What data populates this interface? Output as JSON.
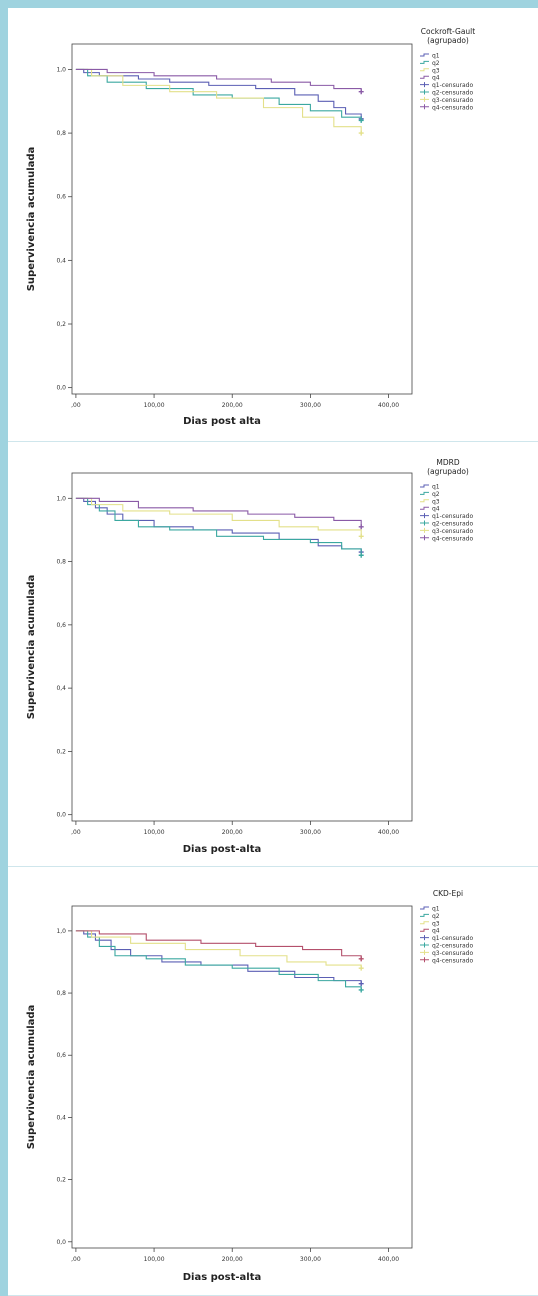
{
  "chart_data": [
    {
      "type": "line",
      "step": true,
      "xlabel": "Dias post alta",
      "ylabel": "Supervivencia acumulada",
      "xlim": [
        -5,
        430
      ],
      "ylim": [
        -0.02,
        1.08
      ],
      "xticks": [
        0,
        100,
        200,
        300,
        400
      ],
      "xtick_labels": [
        ",00",
        "100,00",
        "200,00",
        "300,00",
        "400,00"
      ],
      "yticks": [
        0.0,
        0.2,
        0.4,
        0.6,
        0.8,
        1.0
      ],
      "ytick_labels": [
        "0,0",
        "0,2",
        "0,4",
        "0,6",
        "0,8",
        "1,0"
      ],
      "grid": false,
      "legend": {
        "title": "Cockroft-Gault\n(agrupado)",
        "position": "right",
        "entries": [
          "q1",
          "q2",
          "q3",
          "q4",
          "q1-censurado",
          "q2-censurado",
          "q3-censurado",
          "q4-censurado"
        ]
      },
      "series": [
        {
          "name": "q1",
          "color": "#5b5fb4",
          "x": [
            0,
            10,
            30,
            80,
            120,
            170,
            230,
            280,
            310,
            330,
            345,
            365
          ],
          "y": [
            1.0,
            0.99,
            0.98,
            0.97,
            0.96,
            0.95,
            0.94,
            0.92,
            0.9,
            0.88,
            0.86,
            0.85
          ]
        },
        {
          "name": "q2",
          "color": "#3ba8a0",
          "x": [
            0,
            15,
            40,
            90,
            150,
            200,
            260,
            300,
            340,
            365
          ],
          "y": [
            1.0,
            0.98,
            0.96,
            0.94,
            0.92,
            0.91,
            0.89,
            0.87,
            0.85,
            0.84
          ]
        },
        {
          "name": "q3",
          "color": "#e3e08a",
          "x": [
            0,
            20,
            60,
            120,
            180,
            240,
            290,
            330,
            365
          ],
          "y": [
            1.0,
            0.98,
            0.95,
            0.93,
            0.91,
            0.88,
            0.85,
            0.82,
            0.8
          ]
        },
        {
          "name": "q4",
          "color": "#8a5aa6",
          "x": [
            0,
            40,
            100,
            180,
            250,
            300,
            330,
            365
          ],
          "y": [
            1.0,
            0.99,
            0.98,
            0.97,
            0.96,
            0.95,
            0.94,
            0.93
          ]
        }
      ],
      "censored_end": [
        0.845,
        0.84,
        0.8,
        0.93
      ]
    },
    {
      "type": "line",
      "step": true,
      "xlabel": "Dias post-alta",
      "ylabel": "Supervivencia acumulada",
      "xlim": [
        -5,
        430
      ],
      "ylim": [
        -0.02,
        1.08
      ],
      "xticks": [
        0,
        100,
        200,
        300,
        400
      ],
      "xtick_labels": [
        ",00",
        "100,00",
        "200,00",
        "300,00",
        "400,00"
      ],
      "yticks": [
        0.0,
        0.2,
        0.4,
        0.6,
        0.8,
        1.0
      ],
      "ytick_labels": [
        "0,0",
        "0,2",
        "0,4",
        "0,6",
        "0,8",
        "1,0"
      ],
      "grid": false,
      "legend": {
        "title": "MDRD\n(agrupado)",
        "position": "right",
        "entries": [
          "q1",
          "q2",
          "q3",
          "q4",
          "q1-censurado",
          "q2-censurado",
          "q3-censurado",
          "q4-censurado"
        ]
      },
      "series": [
        {
          "name": "q1",
          "color": "#5b5fb4",
          "x": [
            0,
            10,
            25,
            40,
            60,
            100,
            150,
            200,
            260,
            310,
            340,
            365
          ],
          "y": [
            1.0,
            0.99,
            0.97,
            0.95,
            0.93,
            0.91,
            0.9,
            0.89,
            0.87,
            0.85,
            0.84,
            0.83
          ]
        },
        {
          "name": "q2",
          "color": "#3ba8a0",
          "x": [
            0,
            15,
            30,
            50,
            80,
            120,
            180,
            240,
            300,
            340,
            365
          ],
          "y": [
            1.0,
            0.98,
            0.96,
            0.93,
            0.91,
            0.9,
            0.88,
            0.87,
            0.86,
            0.84,
            0.82
          ]
        },
        {
          "name": "q3",
          "color": "#e3e08a",
          "x": [
            0,
            20,
            60,
            120,
            200,
            260,
            310,
            365
          ],
          "y": [
            1.0,
            0.98,
            0.96,
            0.95,
            0.93,
            0.91,
            0.9,
            0.88
          ]
        },
        {
          "name": "q4",
          "color": "#8a5aa6",
          "x": [
            0,
            30,
            80,
            150,
            220,
            280,
            330,
            365
          ],
          "y": [
            1.0,
            0.99,
            0.97,
            0.96,
            0.95,
            0.94,
            0.93,
            0.91
          ]
        }
      ],
      "censored_end": [
        0.83,
        0.82,
        0.88,
        0.91
      ]
    },
    {
      "type": "line",
      "step": true,
      "xlabel": "Dias post-alta",
      "ylabel": "Supervivencia acumulada",
      "xlim": [
        -5,
        430
      ],
      "ylim": [
        -0.02,
        1.08
      ],
      "xticks": [
        0,
        100,
        200,
        300,
        400
      ],
      "xtick_labels": [
        ",00",
        "100,00",
        "200,00",
        "300,00",
        "400,00"
      ],
      "yticks": [
        0.0,
        0.2,
        0.4,
        0.6,
        0.8,
        1.0
      ],
      "ytick_labels": [
        "0,0",
        "0,2",
        "0,4",
        "0,6",
        "0,8",
        "1,0"
      ],
      "grid": false,
      "legend": {
        "title": "CKD-Epi",
        "position": "right",
        "entries": [
          "q1",
          "q2",
          "q3",
          "q4",
          "q1-censurado",
          "q2-censurado",
          "q3-censurado",
          "q4-censurado"
        ]
      },
      "series": [
        {
          "name": "q1",
          "color": "#5b5fb4",
          "x": [
            0,
            10,
            25,
            45,
            70,
            110,
            160,
            220,
            280,
            330,
            365
          ],
          "y": [
            1.0,
            0.99,
            0.97,
            0.94,
            0.92,
            0.9,
            0.89,
            0.87,
            0.85,
            0.84,
            0.83
          ]
        },
        {
          "name": "q2",
          "color": "#3ba8a0",
          "x": [
            0,
            15,
            30,
            50,
            90,
            140,
            200,
            260,
            310,
            345,
            365
          ],
          "y": [
            1.0,
            0.98,
            0.95,
            0.92,
            0.91,
            0.89,
            0.88,
            0.86,
            0.84,
            0.82,
            0.81
          ]
        },
        {
          "name": "q3",
          "color": "#e3e08a",
          "x": [
            0,
            20,
            70,
            140,
            210,
            270,
            320,
            365
          ],
          "y": [
            1.0,
            0.98,
            0.96,
            0.94,
            0.92,
            0.9,
            0.89,
            0.88
          ]
        },
        {
          "name": "q4",
          "color": "#b4506c",
          "x": [
            0,
            30,
            90,
            160,
            230,
            290,
            340,
            365
          ],
          "y": [
            1.0,
            0.99,
            0.97,
            0.96,
            0.95,
            0.94,
            0.92,
            0.91
          ]
        }
      ],
      "censored_end": [
        0.83,
        0.81,
        0.88,
        0.91
      ]
    }
  ]
}
